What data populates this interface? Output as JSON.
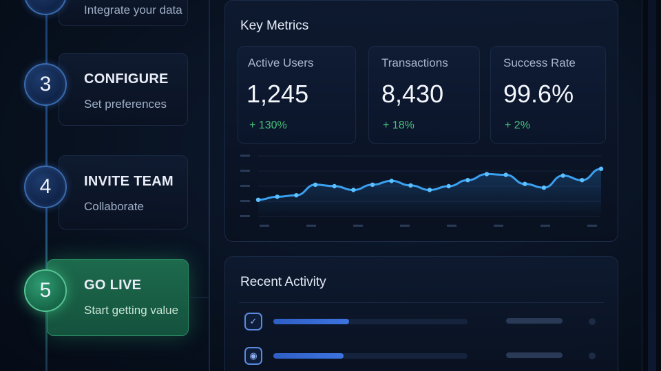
{
  "steps": [
    {
      "number": "",
      "title": "",
      "subtitle": "Integrate your data",
      "state": "done"
    },
    {
      "number": "3",
      "title": "CONFIGURE",
      "subtitle": "Set preferences",
      "state": "pending"
    },
    {
      "number": "4",
      "title": "INVITE TEAM",
      "subtitle": "Collaborate",
      "state": "pending"
    },
    {
      "number": "5",
      "title": "GO LIVE",
      "subtitle": "Start getting value",
      "state": "active"
    }
  ],
  "metrics_panel": {
    "title": "Key Metrics",
    "cards": [
      {
        "label": "Active Users",
        "value": "1,245",
        "delta": "+ 130%"
      },
      {
        "label": "Transactions",
        "value": "8,430",
        "delta": "+ 18%"
      },
      {
        "label": "Success Rate",
        "value": "99.6%",
        "delta": "+ 2%"
      }
    ]
  },
  "chart_data": {
    "type": "line",
    "title": "",
    "xlabel": "",
    "ylabel": "",
    "x": [
      0,
      1,
      2,
      3,
      4,
      5,
      6,
      7,
      8,
      9,
      10,
      11,
      12,
      13,
      14,
      15,
      16,
      17,
      18
    ],
    "series": [
      {
        "values": [
          22,
          26,
          28,
          42,
          40,
          35,
          42,
          47,
          41,
          35,
          40,
          48,
          56,
          55,
          43,
          38,
          54,
          48,
          63
        ]
      }
    ],
    "ylim": [
      0,
      80
    ],
    "grid": true,
    "color": "#3aa0f0"
  },
  "activity_panel": {
    "title": "Recent Activity",
    "rows": [
      {
        "icon": "task-check-icon",
        "progress": 0.39
      },
      {
        "icon": "chat-bubble-icon",
        "progress": 0.36
      }
    ]
  },
  "colors": {
    "accent_blue": "#3a6cb0",
    "active_green": "#1d6a4d",
    "positive": "#46c27a"
  }
}
